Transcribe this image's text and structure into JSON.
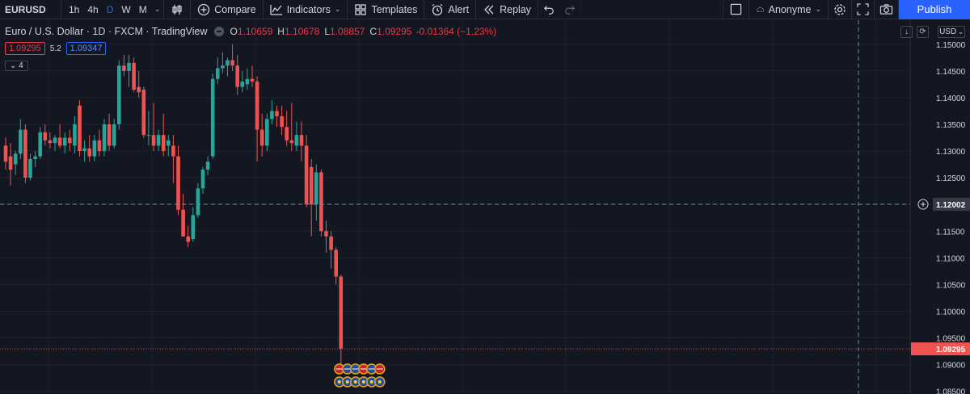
{
  "toolbar": {
    "symbol": "EURUSD",
    "timeframes": [
      {
        "label": "1h",
        "active": false
      },
      {
        "label": "4h",
        "active": false
      },
      {
        "label": "D",
        "active": true
      },
      {
        "label": "W",
        "active": false
      },
      {
        "label": "M",
        "active": false
      }
    ],
    "chart_type_icon": "candles-icon",
    "compare_label": "Compare",
    "indicators_label": "Indicators",
    "templates_label": "Templates",
    "alert_label": "Alert",
    "replay_label": "Replay",
    "user_label": "Anonyme",
    "publish_label": "Publish"
  },
  "legend": {
    "title": "Euro / U.S. Dollar · 1D · FXCM · TradingView",
    "o_label": "O",
    "o_value": "1.10659",
    "h_label": "H",
    "h_value": "1.10678",
    "l_label": "L",
    "l_value": "1.08857",
    "c_label": "C",
    "c_value": "1.09295",
    "change": "-0.01364 (−1.23%)",
    "bid": "1.09295",
    "spread": "5.2",
    "ask": "1.09347",
    "indicators_count": "4"
  },
  "currency": "USD",
  "colors": {
    "up": "#26a69a",
    "down": "#ef5350",
    "bg": "#131722",
    "grid": "#1e222d",
    "accent": "#2962ff"
  },
  "chart_data": {
    "type": "candlestick",
    "y_axis_ticks": [
      "1.15000",
      "1.14500",
      "1.14000",
      "1.13500",
      "1.13000",
      "1.12500",
      "1.12000",
      "1.11500",
      "1.11000",
      "1.10500",
      "1.10000",
      "1.09500",
      "1.09000",
      "1.08500"
    ],
    "ylim": [
      1.0845,
      1.1545
    ],
    "crosshair_price": "1.12002",
    "last_price": "1.09295",
    "candles": [
      {
        "o": 1.131,
        "h": 1.1325,
        "l": 1.1265,
        "c": 1.128
      },
      {
        "o": 1.129,
        "h": 1.1315,
        "l": 1.1235,
        "c": 1.1265
      },
      {
        "o": 1.1275,
        "h": 1.13,
        "l": 1.1255,
        "c": 1.1295
      },
      {
        "o": 1.1295,
        "h": 1.136,
        "l": 1.1285,
        "c": 1.134
      },
      {
        "o": 1.134,
        "h": 1.135,
        "l": 1.124,
        "c": 1.125
      },
      {
        "o": 1.125,
        "h": 1.1295,
        "l": 1.1245,
        "c": 1.1285
      },
      {
        "o": 1.1285,
        "h": 1.13,
        "l": 1.127,
        "c": 1.129
      },
      {
        "o": 1.129,
        "h": 1.1345,
        "l": 1.1285,
        "c": 1.1335
      },
      {
        "o": 1.1335,
        "h": 1.135,
        "l": 1.131,
        "c": 1.132
      },
      {
        "o": 1.132,
        "h": 1.1335,
        "l": 1.1305,
        "c": 1.1315
      },
      {
        "o": 1.1315,
        "h": 1.133,
        "l": 1.13,
        "c": 1.1325
      },
      {
        "o": 1.1325,
        "h": 1.135,
        "l": 1.1305,
        "c": 1.131
      },
      {
        "o": 1.131,
        "h": 1.1335,
        "l": 1.1295,
        "c": 1.1325
      },
      {
        "o": 1.1325,
        "h": 1.134,
        "l": 1.13,
        "c": 1.1315
      },
      {
        "o": 1.131,
        "h": 1.1365,
        "l": 1.1295,
        "c": 1.135
      },
      {
        "o": 1.1385,
        "h": 1.1395,
        "l": 1.129,
        "c": 1.13
      },
      {
        "o": 1.13,
        "h": 1.132,
        "l": 1.128,
        "c": 1.1305
      },
      {
        "o": 1.1305,
        "h": 1.133,
        "l": 1.128,
        "c": 1.129
      },
      {
        "o": 1.129,
        "h": 1.133,
        "l": 1.128,
        "c": 1.132
      },
      {
        "o": 1.132,
        "h": 1.134,
        "l": 1.129,
        "c": 1.13
      },
      {
        "o": 1.13,
        "h": 1.136,
        "l": 1.129,
        "c": 1.135
      },
      {
        "o": 1.135,
        "h": 1.137,
        "l": 1.13,
        "c": 1.131
      },
      {
        "o": 1.131,
        "h": 1.136,
        "l": 1.1305,
        "c": 1.135
      },
      {
        "o": 1.135,
        "h": 1.147,
        "l": 1.134,
        "c": 1.146
      },
      {
        "o": 1.146,
        "h": 1.148,
        "l": 1.144,
        "c": 1.145
      },
      {
        "o": 1.145,
        "h": 1.148,
        "l": 1.142,
        "c": 1.1465
      },
      {
        "o": 1.1465,
        "h": 1.1475,
        "l": 1.141,
        "c": 1.1415
      },
      {
        "o": 1.142,
        "h": 1.145,
        "l": 1.14,
        "c": 1.141
      },
      {
        "o": 1.1415,
        "h": 1.142,
        "l": 1.1325,
        "c": 1.133
      },
      {
        "o": 1.133,
        "h": 1.1375,
        "l": 1.131,
        "c": 1.133
      },
      {
        "o": 1.133,
        "h": 1.139,
        "l": 1.13,
        "c": 1.131
      },
      {
        "o": 1.131,
        "h": 1.134,
        "l": 1.13,
        "c": 1.133
      },
      {
        "o": 1.133,
        "h": 1.137,
        "l": 1.129,
        "c": 1.13
      },
      {
        "o": 1.131,
        "h": 1.133,
        "l": 1.129,
        "c": 1.132
      },
      {
        "o": 1.131,
        "h": 1.133,
        "l": 1.124,
        "c": 1.129
      },
      {
        "o": 1.129,
        "h": 1.131,
        "l": 1.118,
        "c": 1.119
      },
      {
        "o": 1.119,
        "h": 1.122,
        "l": 1.114,
        "c": 1.114
      },
      {
        "o": 1.114,
        "h": 1.116,
        "l": 1.112,
        "c": 1.113
      },
      {
        "o": 1.1135,
        "h": 1.1195,
        "l": 1.113,
        "c": 1.118
      },
      {
        "o": 1.118,
        "h": 1.124,
        "l": 1.1175,
        "c": 1.123
      },
      {
        "o": 1.123,
        "h": 1.127,
        "l": 1.122,
        "c": 1.1265
      },
      {
        "o": 1.1265,
        "h": 1.129,
        "l": 1.1255,
        "c": 1.128
      },
      {
        "o": 1.129,
        "h": 1.1445,
        "l": 1.1285,
        "c": 1.1435
      },
      {
        "o": 1.1435,
        "h": 1.1475,
        "l": 1.1425,
        "c": 1.1455
      },
      {
        "o": 1.1455,
        "h": 1.1485,
        "l": 1.1445,
        "c": 1.146
      },
      {
        "o": 1.146,
        "h": 1.1475,
        "l": 1.144,
        "c": 1.147
      },
      {
        "o": 1.147,
        "h": 1.15,
        "l": 1.145,
        "c": 1.146
      },
      {
        "o": 1.146,
        "h": 1.148,
        "l": 1.1405,
        "c": 1.142
      },
      {
        "o": 1.142,
        "h": 1.145,
        "l": 1.141,
        "c": 1.143
      },
      {
        "o": 1.1425,
        "h": 1.1455,
        "l": 1.1415,
        "c": 1.1435
      },
      {
        "o": 1.1435,
        "h": 1.146,
        "l": 1.142,
        "c": 1.143
      },
      {
        "o": 1.143,
        "h": 1.144,
        "l": 1.128,
        "c": 1.134
      },
      {
        "o": 1.134,
        "h": 1.137,
        "l": 1.129,
        "c": 1.131
      },
      {
        "o": 1.131,
        "h": 1.137,
        "l": 1.13,
        "c": 1.136
      },
      {
        "o": 1.136,
        "h": 1.1395,
        "l": 1.135,
        "c": 1.1375
      },
      {
        "o": 1.1375,
        "h": 1.1385,
        "l": 1.1345,
        "c": 1.1365
      },
      {
        "o": 1.1365,
        "h": 1.1385,
        "l": 1.133,
        "c": 1.1345
      },
      {
        "o": 1.1345,
        "h": 1.1375,
        "l": 1.131,
        "c": 1.132
      },
      {
        "o": 1.132,
        "h": 1.139,
        "l": 1.13,
        "c": 1.1315
      },
      {
        "o": 1.131,
        "h": 1.1355,
        "l": 1.13,
        "c": 1.133
      },
      {
        "o": 1.133,
        "h": 1.1355,
        "l": 1.128,
        "c": 1.131
      },
      {
        "o": 1.131,
        "h": 1.133,
        "l": 1.1195,
        "c": 1.12
      },
      {
        "o": 1.127,
        "h": 1.1285,
        "l": 1.114,
        "c": 1.12
      },
      {
        "o": 1.12,
        "h": 1.1275,
        "l": 1.117,
        "c": 1.126
      },
      {
        "o": 1.126,
        "h": 1.1265,
        "l": 1.114,
        "c": 1.115
      },
      {
        "o": 1.115,
        "h": 1.117,
        "l": 1.111,
        "c": 1.114
      },
      {
        "o": 1.114,
        "h": 1.115,
        "l": 1.108,
        "c": 1.1115
      },
      {
        "o": 1.1115,
        "h": 1.112,
        "l": 1.105,
        "c": 1.1065
      },
      {
        "o": 1.1065,
        "h": 1.1068,
        "l": 1.0886,
        "c": 1.093
      }
    ]
  }
}
